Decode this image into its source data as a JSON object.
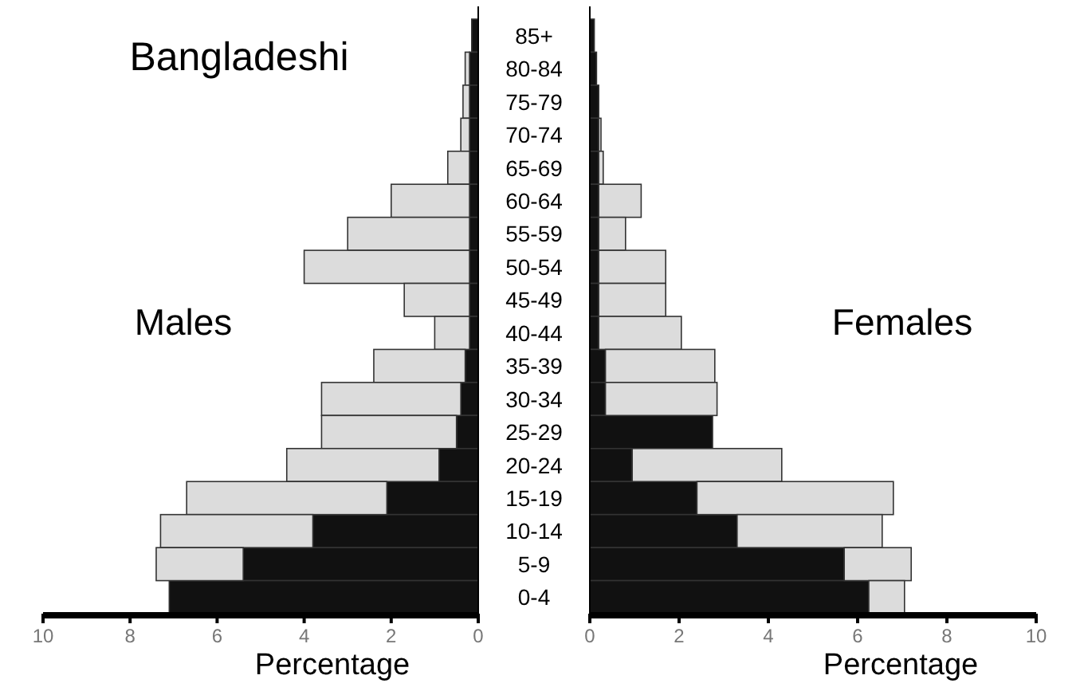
{
  "chart_data": [
    {
      "type": "bar",
      "orientation": "horizontal",
      "stacked": true,
      "title": "Bangladeshi",
      "xlabel": "Percentage",
      "annotations": [
        "Males"
      ],
      "tick_labels": "x",
      "grid": false,
      "categories": [
        null,
        null,
        null,
        null,
        null,
        null,
        null,
        null,
        null,
        null,
        null,
        null,
        null,
        null,
        null,
        null,
        null,
        null
      ],
      "xlim": [
        10,
        0
      ],
      "xticks": [
        10,
        8,
        6,
        4,
        2,
        0
      ],
      "series": [
        {
          "color": "#111111",
          "values": [
            0.15,
            0.2,
            0.2,
            0.2,
            0.2,
            0.2,
            0.2,
            0.2,
            0.2,
            0.2,
            0.3,
            0.4,
            0.5,
            0.9,
            2.1,
            3.8,
            5.4,
            7.1
          ]
        },
        {
          "color": "#dcdcdc",
          "values": [
            0,
            0.1,
            0.15,
            0.2,
            0.5,
            1.8,
            2.8,
            3.8,
            1.5,
            0.8,
            2.1,
            3.2,
            3.1,
            3.5,
            4.6,
            3.5,
            2.0,
            0
          ]
        }
      ]
    },
    {
      "type": "bar",
      "orientation": "horizontal",
      "stacked": true,
      "xlabel": "Percentage",
      "annotations": [
        "Females"
      ],
      "grid": false,
      "categories": [
        "85+",
        "80-84",
        "75-79",
        "70-74",
        "65-69",
        "60-64",
        "55-59",
        "50-54",
        "45-49",
        "40-44",
        "35-39",
        "30-34",
        "25-29",
        "20-24",
        "15-19",
        "10-14",
        "5-9",
        "0-4"
      ],
      "xlim": [
        0,
        10
      ],
      "xticks": [
        0,
        2,
        4,
        6,
        8,
        10
      ],
      "series": [
        {
          "color": "#111111",
          "values": [
            0.1,
            0.15,
            0.2,
            0.2,
            0.2,
            0.2,
            0.2,
            0.2,
            0.2,
            0.2,
            0.35,
            0.35,
            2.75,
            0.95,
            2.4,
            3.3,
            5.7,
            6.25
          ]
        },
        {
          "color": "#dcdcdc",
          "values": [
            0,
            0,
            0,
            0.05,
            0.1,
            0.95,
            0.6,
            1.5,
            1.5,
            1.85,
            2.45,
            2.5,
            0,
            3.35,
            4.4,
            3.25,
            1.5,
            0.8
          ]
        }
      ]
    }
  ]
}
